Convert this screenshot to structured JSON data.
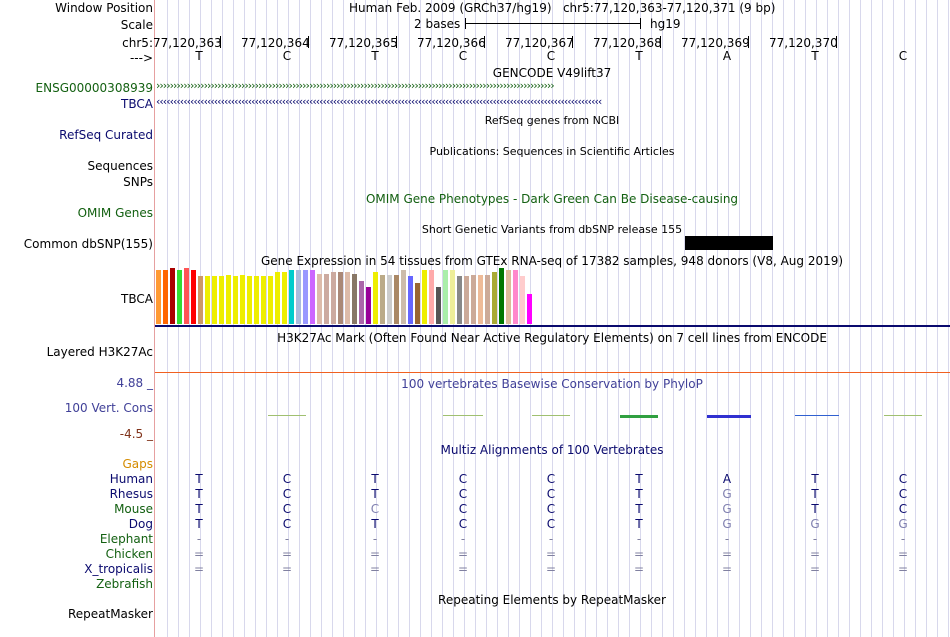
{
  "colors": {
    "label_navy": "#0a0a6e",
    "label_green": "#136011",
    "gaps_orange": "#d48c00",
    "cons_blue": "#404098",
    "cons_brown": "#80331a",
    "grid": "#d8d8ec",
    "h3k27ac_line": "#0a0a6e",
    "cons_top_line": "#f06020"
  },
  "header": {
    "window_position_label": "Window Position",
    "window_position_value": "Human Feb. 2009 (GRCh37/hg19)   chr5:77,120,363-77,120,371 (9 bp)",
    "scale_label": "Scale",
    "scale_size": "2 bases",
    "scale_assembly": "hg19",
    "chrom_label": "chr5:",
    "strand_label": "--->",
    "positions": [
      "77,120,363",
      "77,120,364",
      "77,120,365",
      "77,120,366",
      "77,120,367",
      "77,120,368",
      "77,120,369",
      "77,120,370"
    ],
    "bases": [
      "T",
      "C",
      "T",
      "C",
      "C",
      "T",
      "A",
      "T",
      "C"
    ]
  },
  "gencode": {
    "title": "GENCODE V49lift37",
    "tracks": [
      {
        "name": "ENSG00000308939",
        "direction": "forward"
      },
      {
        "name": "TBCA",
        "direction": "reverse"
      }
    ],
    "forward_glyphs": "›››››››››››››››››››››››››››››››››››››››››››››››››››››››››››››››››››››››››››››››››››››››››››››››››››››››››››››››››››››",
    "reverse_glyphs": "‹‹‹‹‹‹‹‹‹‹‹‹‹‹‹‹‹‹‹‹‹‹‹‹‹‹‹‹‹‹‹‹‹‹‹‹‹‹‹‹‹‹‹‹‹‹‹‹‹‹‹‹‹‹‹‹‹‹‹‹‹‹‹‹‹‹‹‹‹‹‹‹‹‹‹‹‹‹‹‹‹‹‹‹‹‹‹‹‹‹‹‹‹‹‹‹‹‹‹‹‹‹‹‹‹‹‹‹‹‹‹‹‹‹‹‹‹‹‹‹‹‹‹‹‹‹‹‹‹‹‹"
  },
  "refseq": {
    "label": "RefSeq Curated",
    "title": "RefSeq genes from NCBI"
  },
  "publications": {
    "label": "Sequences",
    "title": "Publications: Sequences in Scientific Articles"
  },
  "snps": {
    "label": "SNPs"
  },
  "omim": {
    "label": "OMIM Genes",
    "title": "OMIM Gene Phenotypes - Dark Green Can Be Disease-causing"
  },
  "dbsnp": {
    "label": "Common dbSNP(155)",
    "title": "Short Genetic Variants from dbSNP release 155"
  },
  "gtex": {
    "label": "TBCA",
    "title": "Gene Expression in 54 tissues from GTEx RNA-seq of 17382 samples, 948 donors (V8, Aug 2019)",
    "relative_levels": [
      0.96,
      0.96,
      1.0,
      0.96,
      1.0,
      0.96,
      0.85,
      0.85,
      0.85,
      0.85,
      0.87,
      0.85,
      0.88,
      0.85,
      0.85,
      0.85,
      0.85,
      0.92,
      0.92,
      0.97,
      0.96,
      0.96,
      0.96,
      0.89,
      0.89,
      0.92,
      0.92,
      0.92,
      0.89,
      0.77,
      0.66,
      0.92,
      0.88,
      0.88,
      0.88,
      0.96,
      0.85,
      0.74,
      0.96,
      0.96,
      0.66,
      0.96,
      0.96,
      0.85,
      0.85,
      0.88,
      0.88,
      0.88,
      0.92,
      1.0,
      0.96,
      0.96,
      0.85,
      0.53
    ],
    "colors": [
      "#FF9933",
      "#FF6600",
      "#AA0000",
      "#33DD33",
      "#FF5555",
      "#FF0000",
      "#CC9966",
      "#EEEE00",
      "#EEEE00",
      "#EEEE00",
      "#EEEE00",
      "#EEEE00",
      "#EEEE00",
      "#EEEE00",
      "#EEEE00",
      "#EEEE00",
      "#EEEE00",
      "#EEEE00",
      "#EEEE00",
      "#00CCCC",
      "#AABBDD",
      "#9999FF",
      "#CC66FF",
      "#DDBBAA",
      "#CCAAA0",
      "#CCAAA0",
      "#AA8877",
      "#DDBBAA",
      "#887766",
      "#AA66AA",
      "#990099",
      "#EEEE00",
      "#BBAA88",
      "#CCCCCC",
      "#AA8866",
      "#CCBBAA",
      "#6666FF",
      "#996633",
      "#EEEE00",
      "#FFAAAA",
      "#555555",
      "#AAEEAA",
      "#EEEE99",
      "#888888",
      "#CCAA99",
      "#CCAA99",
      "#EEBB99",
      "#CCAA99",
      "#AAAA33",
      "#007700",
      "#DDBB99",
      "#FF88CC",
      "#FFCCCC",
      "#FF00FF"
    ]
  },
  "h3k27ac": {
    "label": "Layered H3K27Ac",
    "title": "H3K27Ac Mark (Often Found Near Active Regulatory Elements) on 7 cell lines from ENCODE"
  },
  "conservation": {
    "label": "100 Vert. Cons",
    "ymax": "4.88 _",
    "ymin": "-4.5 _",
    "title": "100 vertebrates Basewise Conservation by PhyloP",
    "segment_colors": [
      "#a0c070",
      "#a0c070",
      "#a0c070",
      "#30a040",
      "#3030d0",
      "#3060d0",
      "#a0c070"
    ]
  },
  "multiz": {
    "title": "Multiz Alignments of 100 Vertebrates",
    "gaps_label": "Gaps",
    "species": [
      {
        "name": "Human",
        "bases": [
          "T",
          "C",
          "T",
          "C",
          "C",
          "T",
          "A",
          "T",
          "C"
        ]
      },
      {
        "name": "Rhesus",
        "bases": [
          "T",
          "C",
          "T",
          "C",
          "C",
          "T",
          "G",
          "T",
          "C"
        ]
      },
      {
        "name": "Mouse",
        "bases": [
          "T",
          "C",
          "C",
          "C",
          "C",
          "T",
          "G",
          "T",
          "C"
        ]
      },
      {
        "name": "Dog",
        "bases": [
          "T",
          "C",
          "T",
          "C",
          "C",
          "T",
          "G",
          "G",
          "G"
        ]
      },
      {
        "name": "Elephant",
        "bases": [
          "-",
          "-",
          "-",
          "-",
          "-",
          "-",
          "-",
          "-",
          "-"
        ]
      },
      {
        "name": "Chicken",
        "bases": [
          "=",
          "=",
          "=",
          "=",
          "=",
          "=",
          "=",
          "=",
          "="
        ]
      },
      {
        "name": "X_tropicalis",
        "bases": [
          "=",
          "=",
          "=",
          "=",
          "=",
          "=",
          "=",
          "=",
          "="
        ]
      },
      {
        "name": "Zebrafish",
        "bases": [
          "",
          "",
          "",
          "",
          "",
          "",
          "",
          "",
          ""
        ]
      }
    ]
  },
  "repeatmasker": {
    "label": "RepeatMasker",
    "title": "Repeating Elements by RepeatMasker"
  }
}
